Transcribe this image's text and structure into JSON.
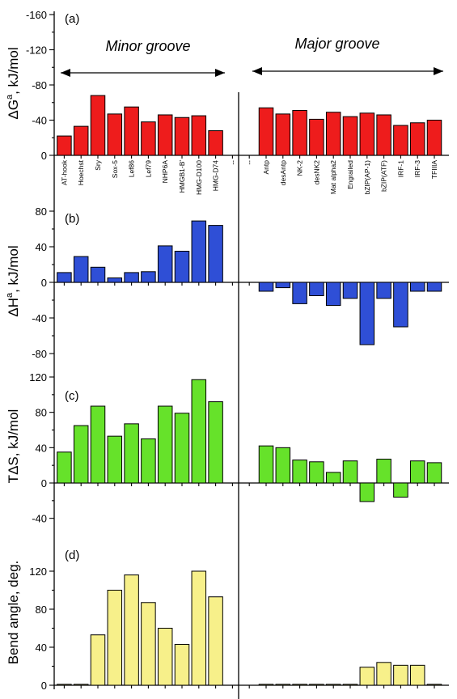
{
  "categories": [
    "AT-hook",
    "Hoechst",
    "Sry",
    "Sox-5",
    "Lef86",
    "Lef79",
    "NHP6A",
    "HMGB1-B'",
    "HMG-D100",
    "HMG-D74",
    "--",
    "--",
    "Antp",
    "desAntp",
    "NK-2",
    "desNK2",
    "Mat alpha2",
    "Engrailed",
    "bZIP(AP-1)",
    "bZIP(ATF)",
    "IRF-1",
    "IRF-3",
    "TFIIIA"
  ],
  "groove_labels": {
    "minor": "Minor groove",
    "major": "Major groove"
  },
  "colors": {
    "a": "#ee1c1c",
    "b": "#2f4fd6",
    "c": "#66e22a",
    "d": "#f7f08a"
  },
  "chart_data": [
    {
      "type": "bar",
      "panel_label": "(a)",
      "ylabel": "ΔG^a, kJ/mol",
      "ylim": [
        0,
        -160
      ],
      "yticks": [
        0,
        -40,
        -80,
        -120,
        -160
      ],
      "categories": [
        "AT-hook",
        "Hoechst",
        "Sry",
        "Sox-5",
        "Lef86",
        "Lef79",
        "NHP6A",
        "HMGB1-B'",
        "HMG-D100",
        "HMG-D74",
        "--",
        "--",
        "Antp",
        "desAntp",
        "NK-2",
        "desNK2",
        "Mat alpha2",
        "Engrailed",
        "bZIP(AP-1)",
        "bZIP(ATF)",
        "IRF-1",
        "IRF-3",
        "TFIIIA"
      ],
      "values": [
        -22,
        -33,
        -68,
        -47,
        -55,
        -38,
        -46,
        -43,
        -45,
        -28,
        null,
        null,
        -54,
        -47,
        -51,
        -41,
        -49,
        -44,
        -48,
        -46,
        -34,
        -37,
        -40
      ]
    },
    {
      "type": "bar",
      "panel_label": "(b)",
      "ylabel": "ΔH^a, kJ/mol",
      "ylim": [
        -80,
        80
      ],
      "yticks": [
        -80,
        -40,
        0,
        40,
        80
      ],
      "categories": [
        "AT-hook",
        "Hoechst",
        "Sry",
        "Sox-5",
        "Lef86",
        "Lef79",
        "NHP6A",
        "HMGB1-B'",
        "HMG-D100",
        "HMG-D74",
        "--",
        "--",
        "Antp",
        "desAntp",
        "NK-2",
        "desNK2",
        "Mat alpha2",
        "Engrailed",
        "bZIP(AP-1)",
        "bZIP(ATF)",
        "IRF-1",
        "IRF-3",
        "TFIIIA"
      ],
      "values": [
        11,
        29,
        17,
        5,
        11,
        12,
        41,
        35,
        69,
        64,
        null,
        null,
        -10,
        -6,
        -24,
        -15,
        -26,
        -18,
        -70,
        -18,
        -50,
        -10,
        -10
      ]
    },
    {
      "type": "bar",
      "panel_label": "(c)",
      "ylabel": "TΔS, kJ/mol",
      "ylim": [
        -40,
        120
      ],
      "yticks": [
        -40,
        0,
        40,
        80,
        120
      ],
      "categories": [
        "AT-hook",
        "Hoechst",
        "Sry",
        "Sox-5",
        "Lef86",
        "Lef79",
        "NHP6A",
        "HMGB1-B'",
        "HMG-D100",
        "HMG-D74",
        "--",
        "--",
        "Antp",
        "desAntp",
        "NK-2",
        "desNK2",
        "Mat alpha2",
        "Engrailed",
        "bZIP(AP-1)",
        "bZIP(ATF)",
        "IRF-1",
        "IRF-3",
        "TFIIIA"
      ],
      "values": [
        35,
        65,
        87,
        53,
        67,
        50,
        87,
        79,
        117,
        92,
        null,
        null,
        42,
        40,
        26,
        24,
        12,
        25,
        -21,
        27,
        -16,
        25,
        23
      ]
    },
    {
      "type": "bar",
      "panel_label": "(d)",
      "ylabel": "Bend angle, deg.",
      "ylim": [
        0,
        160
      ],
      "yticks": [
        0,
        40,
        80,
        120
      ],
      "categories": [
        "AT-hook",
        "Hoechst",
        "Sry",
        "Sox-5",
        "Lef86",
        "Lef79",
        "NHP6A",
        "HMGB1-B'",
        "HMG-D100",
        "HMG-D74",
        "--",
        "--",
        "Antp",
        "desAntp",
        "NK-2",
        "desNK2",
        "Mat alpha2",
        "Engrailed",
        "bZIP(AP-1)",
        "bZIP(ATF)",
        "IRF-1",
        "IRF-3",
        "TFIIIA"
      ],
      "values": [
        1,
        1,
        53,
        100,
        116,
        87,
        60,
        43,
        120,
        93,
        null,
        null,
        1,
        1,
        1,
        1,
        1,
        1,
        19,
        24,
        21,
        21,
        1
      ]
    }
  ]
}
